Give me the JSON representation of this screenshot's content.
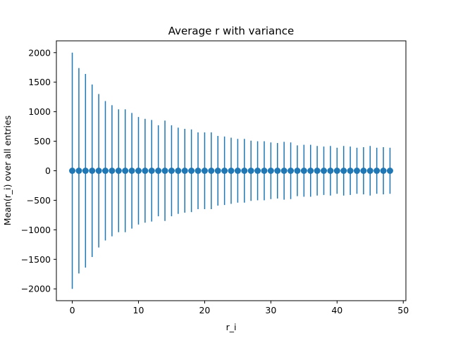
{
  "chart_data": {
    "type": "scatter",
    "title": "Average r with variance",
    "xlabel": "r_i",
    "ylabel": "Mean(r_i) over all entries",
    "xlim": [
      -2.4,
      50.4
    ],
    "ylim": [
      -2200,
      2200
    ],
    "xticks": [
      0,
      10,
      20,
      30,
      40,
      50
    ],
    "yticks": [
      -2000,
      -1500,
      -1000,
      -500,
      0,
      500,
      1000,
      1500,
      2000
    ],
    "grid": false,
    "legend": "none",
    "color": "#1f77b4",
    "series": [
      {
        "x": [
          0,
          1,
          2,
          3,
          4,
          5,
          6,
          7,
          8,
          9,
          10,
          11,
          12,
          13,
          14,
          15,
          16,
          17,
          18,
          19,
          20,
          21,
          22,
          23,
          24,
          25,
          26,
          27,
          28,
          29,
          30,
          31,
          32,
          33,
          34,
          35,
          36,
          37,
          38,
          39,
          40,
          41,
          42,
          43,
          44,
          45,
          46,
          47,
          48
        ],
        "y": [
          0,
          0,
          0,
          0,
          0,
          0,
          0,
          0,
          0,
          0,
          0,
          0,
          0,
          0,
          0,
          0,
          0,
          0,
          0,
          0,
          0,
          0,
          0,
          0,
          0,
          0,
          0,
          0,
          0,
          0,
          0,
          0,
          0,
          0,
          0,
          0,
          0,
          0,
          0,
          0,
          0,
          0,
          0,
          0,
          0,
          0,
          0,
          0,
          0
        ],
        "yerr": [
          2000,
          1740,
          1640,
          1460,
          1300,
          1180,
          1110,
          1040,
          1040,
          980,
          910,
          880,
          860,
          770,
          850,
          770,
          730,
          710,
          700,
          650,
          650,
          650,
          590,
          580,
          560,
          540,
          540,
          510,
          500,
          500,
          480,
          470,
          490,
          480,
          430,
          440,
          440,
          420,
          410,
          420,
          390,
          420,
          410,
          390,
          400,
          420,
          390,
          400,
          390
        ]
      }
    ]
  }
}
